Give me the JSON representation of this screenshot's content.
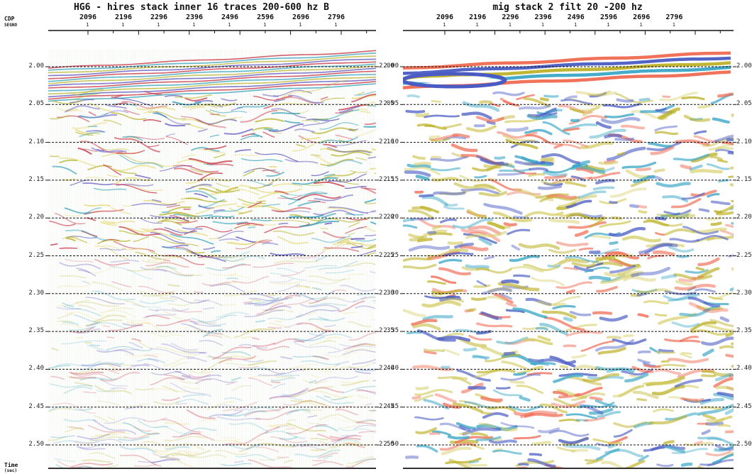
{
  "axis": {
    "cdp_label": "CDP",
    "segno_label": "SEGNO",
    "time_label": "Time",
    "time_unit_label": "(sec)"
  },
  "panels": [
    {
      "title": "HG6 - hires stack inner 16 traces 200-600 hz B",
      "cdp_ticks": [
        "2096",
        "2196",
        "2296",
        "2396",
        "2496",
        "2596",
        "2696",
        "2796"
      ],
      "segno_tick": "1",
      "time_ticks": [
        "2.00",
        "2.05",
        "2.10",
        "2.15",
        "2.20",
        "2.25",
        "2.30",
        "2.35",
        "2.40",
        "2.45",
        "2.50"
      ],
      "palette": [
        "#c8283c",
        "#2da0ba",
        "#b9b42a",
        "#5a4ec0",
        "#e8d870"
      ]
    },
    {
      "title": "mig stack 2 filt 20 -200 hz",
      "cdp_ticks": [
        "2096",
        "2196",
        "2296",
        "2396",
        "2496",
        "2596",
        "2696",
        "2796"
      ],
      "segno_tick": "1",
      "time_ticks": [
        "2.00",
        "2.05",
        "2.10",
        "2.15",
        "2.20",
        "2.25",
        "2.30",
        "2.35",
        "2.40",
        "2.45",
        "2.50"
      ],
      "palette": [
        "#ef6a52",
        "#4a5cc4",
        "#bdb228",
        "#3aa6c6",
        "#d4cc62"
      ]
    }
  ]
}
